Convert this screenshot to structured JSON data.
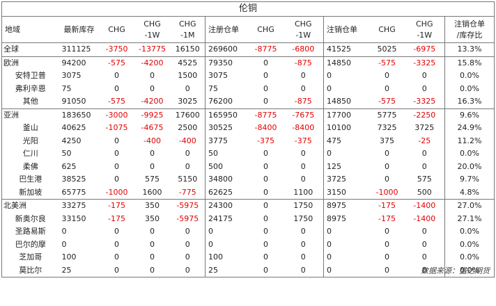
{
  "title": "伦铜",
  "headers": [
    "地域",
    "最新库存",
    "CHG",
    "CHG\n-1W",
    "CHG\n-1M",
    "注册仓单",
    "CHG",
    "CHG\n-1W",
    "注销仓单",
    "CHG",
    "CHG\n-1W",
    "注销仓单\n/库存比"
  ],
  "rows": [
    {
      "region": true,
      "name": "全球",
      "cells": [
        "311125",
        "-3750",
        "-13775",
        "16150",
        "269600",
        "-8775",
        "-6800",
        "41525",
        "5025",
        "-6975",
        "13.3%"
      ]
    },
    {
      "region": true,
      "name": "欧洲",
      "cells": [
        "94200",
        "-575",
        "-4200",
        "4525",
        "79350",
        "0",
        "-875",
        "14850",
        "-575",
        "-3325",
        "15.8%"
      ]
    },
    {
      "region": false,
      "name": "安特卫普",
      "cells": [
        "3075",
        "0",
        "0",
        "1500",
        "3075",
        "0",
        "0",
        "0",
        "0",
        "0",
        "0.0%"
      ]
    },
    {
      "region": false,
      "name": "弗利辛恩",
      "cells": [
        "75",
        "0",
        "0",
        "0",
        "75",
        "0",
        "0",
        "0",
        "0",
        "0",
        "0.0%"
      ]
    },
    {
      "region": false,
      "name": "其他",
      "cells": [
        "91050",
        "-575",
        "-4200",
        "3025",
        "76200",
        "0",
        "-875",
        "14850",
        "-575",
        "-3325",
        "16.3%"
      ]
    },
    {
      "region": true,
      "name": "亚洲",
      "cells": [
        "183650",
        "-3000",
        "-9925",
        "17600",
        "165950",
        "-8775",
        "-7675",
        "17700",
        "5775",
        "-2250",
        "9.6%"
      ]
    },
    {
      "region": false,
      "name": "釜山",
      "cells": [
        "40625",
        "-1075",
        "-4675",
        "2500",
        "30525",
        "-8400",
        "-8400",
        "10100",
        "7325",
        "3725",
        "24.9%"
      ]
    },
    {
      "region": false,
      "name": "光阳",
      "cells": [
        "4250",
        "0",
        "-400",
        "-400",
        "3775",
        "-375",
        "-375",
        "475",
        "375",
        "-25",
        "11.2%"
      ]
    },
    {
      "region": false,
      "name": "仁川",
      "cells": [
        "50",
        "0",
        "0",
        "0",
        "50",
        "0",
        "0",
        "0",
        "0",
        "0",
        "0.0%"
      ]
    },
    {
      "region": false,
      "name": "柔佛",
      "cells": [
        "625",
        "0",
        "0",
        "0",
        "500",
        "0",
        "0",
        "125",
        "0",
        "0",
        "20.0%"
      ]
    },
    {
      "region": false,
      "name": "巴生港",
      "cells": [
        "38525",
        "0",
        "575",
        "5150",
        "34800",
        "0",
        "0",
        "3725",
        "0",
        "575",
        "9.7%"
      ]
    },
    {
      "region": false,
      "name": "新加坡",
      "cells": [
        "65775",
        "-1000",
        "1600",
        "-775",
        "62625",
        "0",
        "1100",
        "3150",
        "-1000",
        "500",
        "4.8%"
      ]
    },
    {
      "region": true,
      "name": "北美洲",
      "cells": [
        "33275",
        "-175",
        "350",
        "-5975",
        "24300",
        "0",
        "1750",
        "8975",
        "-175",
        "-1400",
        "27.0%"
      ]
    },
    {
      "region": false,
      "name": "新奥尔良",
      "cells": [
        "33150",
        "-175",
        "350",
        "-5975",
        "24175",
        "0",
        "1750",
        "8975",
        "-175",
        "-1400",
        "27.1%"
      ]
    },
    {
      "region": false,
      "name": "圣路易斯",
      "cells": [
        "0",
        "0",
        "0",
        "0",
        "0",
        "0",
        "0",
        "0",
        "0",
        "0",
        "0.0%"
      ]
    },
    {
      "region": false,
      "name": "巴尔的摩",
      "cells": [
        "0",
        "0",
        "0",
        "0",
        "0",
        "0",
        "0",
        "0",
        "0",
        "0",
        "0.0%"
      ]
    },
    {
      "region": false,
      "name": "芝加哥",
      "cells": [
        "100",
        "0",
        "0",
        "0",
        "100",
        "0",
        "0",
        "0",
        "0",
        "0",
        "0.0%"
      ]
    },
    {
      "region": false,
      "name": "莫比尔",
      "cells": [
        "25",
        "0",
        "0",
        "0",
        "25",
        "0",
        "0",
        "0",
        "0",
        "0",
        "0.0%"
      ]
    }
  ],
  "source": "数据来源：盛达期货"
}
